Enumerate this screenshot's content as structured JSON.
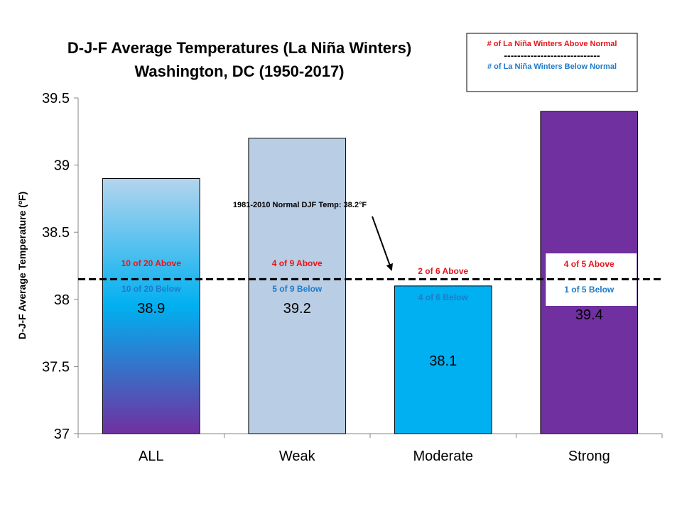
{
  "chart_data": {
    "type": "bar",
    "title": "D-J-F Average Temperatures (La Niña Winters)",
    "subtitle": "Washington, DC (1950-2017)",
    "ylabel": "D-J-F Average Temperature (ºF)",
    "xlabel": "",
    "ylim": [
      37,
      39.5
    ],
    "yticks": [
      "37",
      "37.5",
      "38",
      "38.5",
      "39",
      "39.5"
    ],
    "categories": [
      "ALL",
      "Weak",
      "Moderate",
      "Strong"
    ],
    "values": [
      38.9,
      39.2,
      38.1,
      39.4
    ],
    "value_labels": [
      "38.9",
      "39.2",
      "38.1",
      "39.4"
    ],
    "above_labels": [
      "10 of 20 Above",
      "4 of 9 Above",
      "2 of 6 Above",
      "4 of 5 Above"
    ],
    "below_labels": [
      "10 of 20 Below",
      "5 of 9 Below",
      "4 of 6 Below",
      "1 of 5 Below"
    ],
    "bar_colors": [
      "gradient",
      "#b9cde5",
      "#00b0f0",
      "#7030a0"
    ],
    "normal_line": {
      "value": 38.15,
      "label": "1981-2010  Normal DJF Temp: 38.2°F"
    },
    "legend": {
      "position": "top-right",
      "above_text": "# of La Niña Winters Above Normal",
      "separator": "-----------------------------",
      "below_text": "# of La Niña Winters Below Normal"
    },
    "grid": false,
    "colors": {
      "above": "#e8141b",
      "below": "#1f7ac9",
      "gradient_top": "#aed3ee",
      "gradient_mid": "#00b0f0",
      "gradient_bottom": "#7030a0"
    }
  }
}
